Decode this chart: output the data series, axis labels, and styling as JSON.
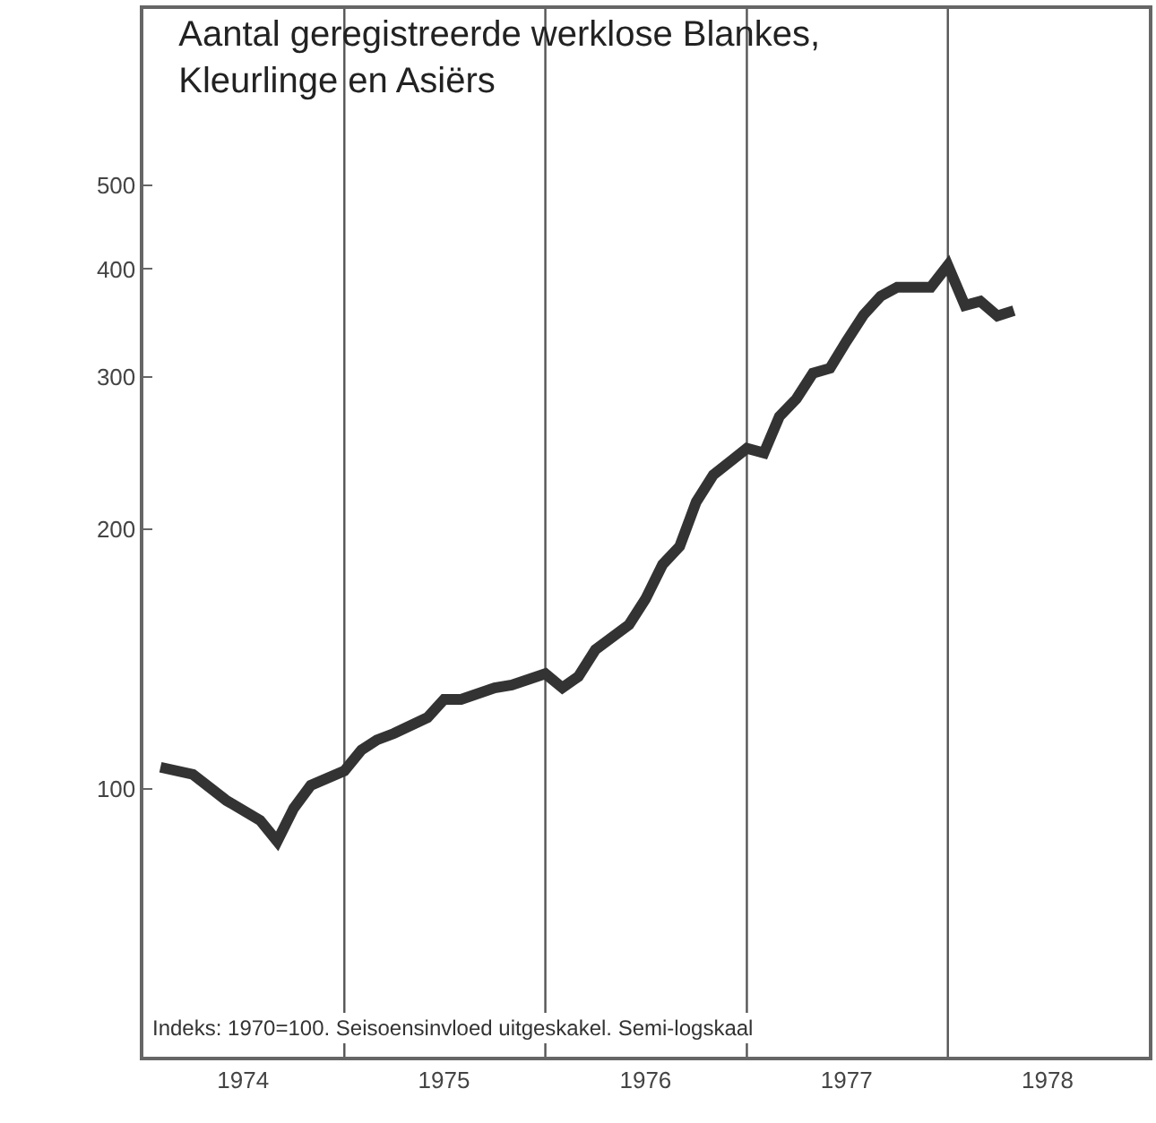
{
  "chart_data": {
    "type": "line",
    "title": "Aantal geregistreerde werklose Blankes, Kleurlinge en Asiërs",
    "x": [
      "1974-02",
      "1974-04",
      "1974-06",
      "1974-08",
      "1974-09",
      "1974-10",
      "1974-11",
      "1975-01",
      "1975-02",
      "1975-03",
      "1975-04",
      "1975-06",
      "1975-07",
      "1975-08",
      "1975-10",
      "1975-11",
      "1976-01",
      "1976-02",
      "1976-03",
      "1976-04",
      "1976-06",
      "1976-07",
      "1976-08",
      "1976-09",
      "1976-10",
      "1976-11",
      "1977-01",
      "1977-02",
      "1977-03",
      "1977-04",
      "1977-05",
      "1977-06",
      "1977-07",
      "1977-08",
      "1977-09",
      "1977-10",
      "1977-12",
      "1978-01",
      "1978-02",
      "1978-03",
      "1978-04",
      "1978-05"
    ],
    "series": [
      {
        "color": "#333333",
        "values": [
          106,
          104,
          97,
          92,
          87,
          95,
          101,
          105,
          111,
          114,
          116,
          121,
          127,
          127,
          131,
          132,
          136,
          131,
          135,
          145,
          155,
          166,
          182,
          191,
          215,
          231,
          248,
          245,
          270,
          283,
          303,
          307,
          330,
          354,
          372,
          381,
          381,
          404,
          363,
          367,
          353,
          358
        ]
      }
    ],
    "log": true,
    "ylim": [
      49,
      800
    ],
    "yticks": [
      100,
      200,
      300,
      400,
      500
    ],
    "xlim": [
      "1974-01-01",
      "1979-01-01"
    ],
    "xticks": [
      {
        "value": "1974-07-01",
        "label": "1974"
      },
      {
        "value": "1975-07-01",
        "label": "1975"
      },
      {
        "value": "1976-07-01",
        "label": "1976"
      },
      {
        "value": "1977-07-01",
        "label": "1977"
      },
      {
        "value": "1978-07-01",
        "label": "1978"
      }
    ],
    "ref_lines": [
      {
        "axis": "x",
        "value": "1975-01-01",
        "label": null,
        "color": "#555555"
      },
      {
        "axis": "x",
        "value": "1976-01-01",
        "label": null,
        "color": "#555555"
      },
      {
        "axis": "x",
        "value": "1977-01-01",
        "label": null,
        "color": "#555555"
      },
      {
        "axis": "x",
        "value": "1978-01-01",
        "label": null,
        "color": "#555555"
      }
    ],
    "annotations": [
      "Indeks: 1970=100. Seisoensinvloed uitgeskakel. Semi-logskaal"
    ],
    "grid": false,
    "marker": "none",
    "line_style": "solid"
  }
}
